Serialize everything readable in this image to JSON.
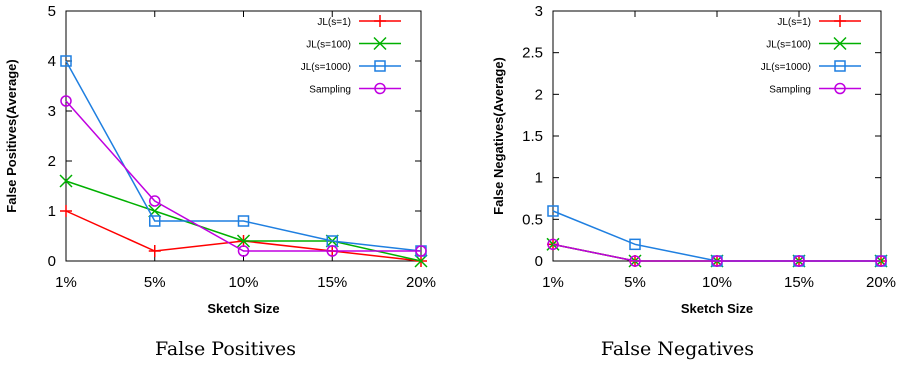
{
  "chart_data": [
    {
      "type": "line",
      "caption": "False Positives",
      "xlabel": "Sketch Size",
      "ylabel": "False Positives(Average)",
      "categories": [
        "1%",
        "5%",
        "10%",
        "15%",
        "20%"
      ],
      "yticks": [
        "0",
        "1",
        "2",
        "3",
        "4",
        "5"
      ],
      "ylim": [
        0,
        5
      ],
      "legend_position": "top-right",
      "grid": false,
      "series": [
        {
          "name": "JL(s=1)",
          "color": "#ff0000",
          "marker": "plus",
          "values": [
            1.0,
            0.2,
            0.4,
            0.2,
            0.0
          ]
        },
        {
          "name": "JL(s=100)",
          "color": "#00b000",
          "marker": "cross",
          "values": [
            1.6,
            1.0,
            0.4,
            0.4,
            0.0
          ]
        },
        {
          "name": "JL(s=1000)",
          "color": "#1f7fe0",
          "marker": "square",
          "values": [
            4.0,
            0.8,
            0.8,
            0.4,
            0.2
          ]
        },
        {
          "name": "Sampling",
          "color": "#c000e0",
          "marker": "circle",
          "values": [
            3.2,
            1.2,
            0.2,
            0.2,
            0.2
          ]
        }
      ]
    },
    {
      "type": "line",
      "caption": "False Negatives",
      "xlabel": "Sketch Size",
      "ylabel": "False Negatives(Average)",
      "categories": [
        "1%",
        "5%",
        "10%",
        "15%",
        "20%"
      ],
      "yticks": [
        "0",
        "0.5",
        "1",
        "1.5",
        "2",
        "2.5",
        "3"
      ],
      "ylim": [
        0,
        3
      ],
      "legend_position": "top-right",
      "grid": false,
      "series": [
        {
          "name": "JL(s=1)",
          "color": "#ff0000",
          "marker": "plus",
          "values": [
            0.2,
            0.0,
            0.0,
            0.0,
            0.0
          ]
        },
        {
          "name": "JL(s=100)",
          "color": "#00b000",
          "marker": "cross",
          "values": [
            0.2,
            0.0,
            0.0,
            0.0,
            0.0
          ]
        },
        {
          "name": "JL(s=1000)",
          "color": "#1f7fe0",
          "marker": "square",
          "values": [
            0.6,
            0.2,
            0.0,
            0.0,
            0.0
          ]
        },
        {
          "name": "Sampling",
          "color": "#c000e0",
          "marker": "circle",
          "values": [
            0.2,
            0.0,
            0.0,
            0.0,
            0.0
          ]
        }
      ]
    }
  ]
}
